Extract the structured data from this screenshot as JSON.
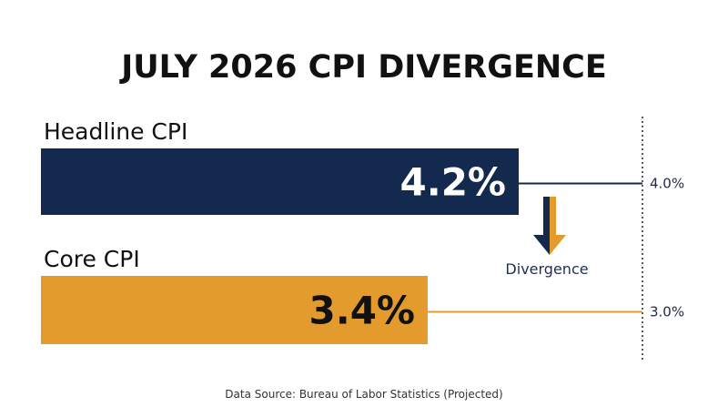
{
  "chart_data": {
    "type": "bar",
    "orientation": "horizontal",
    "title": "JULY 2026 CPI DIVERGENCE",
    "categories": [
      "Headline CPI",
      "Core CPI"
    ],
    "values": [
      4.2,
      3.4
    ],
    "value_labels": [
      "4.2%",
      "3.4%"
    ],
    "reference_values": [
      4.0,
      3.0
    ],
    "reference_labels": [
      "4.0%",
      "3.0%"
    ],
    "annotation": "Divergence",
    "source": "Data Source: Bureau of Labor Statistics (Projected)",
    "grid": false,
    "colors": {
      "headline": "#13294d",
      "core": "#e39b2d",
      "headline_text": "#ffffff",
      "core_text": "#111111"
    }
  }
}
